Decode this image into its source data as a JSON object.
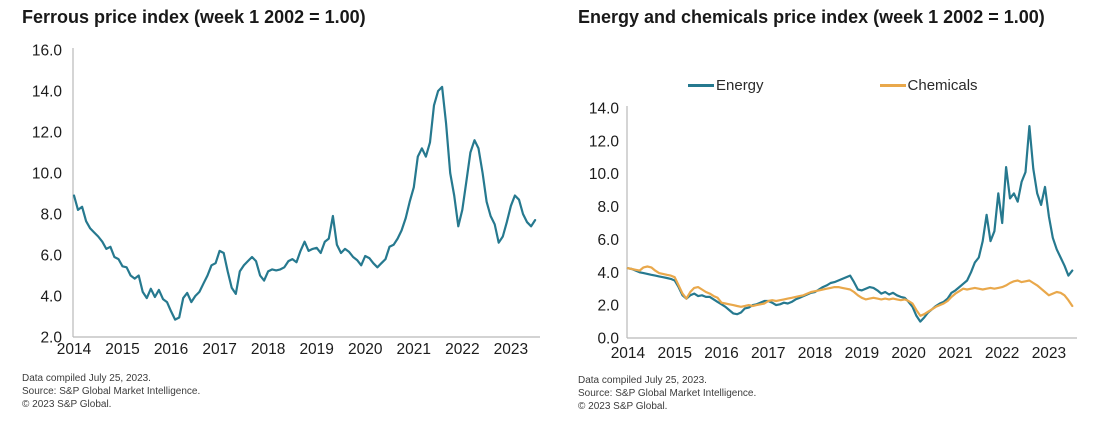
{
  "page": {
    "background": "#ffffff",
    "text_color": "#191919",
    "axis_color": "#b9b9b9"
  },
  "chart_data": [
    {
      "type": "line",
      "title": "Ferrous price index (week 1 2002 = 1.00)",
      "xlabel": "",
      "ylabel": "",
      "x_start_year": 2014,
      "x_frequency": "monthly",
      "x_end_label": "July 2023",
      "xlim": [
        2013.98,
        2023.6
      ],
      "ylim": [
        2.0,
        16.0
      ],
      "yticks": [
        "2.0",
        "4.0",
        "6.0",
        "8.0",
        "10.0",
        "12.0",
        "14.0",
        "16.0"
      ],
      "xticks": [
        "2014",
        "2015",
        "2016",
        "2017",
        "2018",
        "2019",
        "2020",
        "2021",
        "2022",
        "2023"
      ],
      "grid": false,
      "legend_position": "none",
      "series": [
        {
          "name": "Ferrous",
          "color": "#26798f",
          "values": [
            8.9,
            8.2,
            8.35,
            7.65,
            7.3,
            7.1,
            6.9,
            6.65,
            6.3,
            6.4,
            5.9,
            5.8,
            5.45,
            5.4,
            5.0,
            4.85,
            5.0,
            4.2,
            3.9,
            4.35,
            3.95,
            4.3,
            3.85,
            3.7,
            3.25,
            2.85,
            2.95,
            3.9,
            4.15,
            3.7,
            4.0,
            4.2,
            4.6,
            5.0,
            5.5,
            5.6,
            6.2,
            6.1,
            5.2,
            4.4,
            4.1,
            5.2,
            5.5,
            5.7,
            5.9,
            5.7,
            5.0,
            4.75,
            5.2,
            5.3,
            5.25,
            5.3,
            5.4,
            5.7,
            5.8,
            5.65,
            6.2,
            6.65,
            6.2,
            6.3,
            6.35,
            6.1,
            6.65,
            6.8,
            7.9,
            6.5,
            6.1,
            6.3,
            6.15,
            5.9,
            5.75,
            5.5,
            5.95,
            5.85,
            5.6,
            5.4,
            5.6,
            5.8,
            6.4,
            6.5,
            6.8,
            7.2,
            7.8,
            8.6,
            9.3,
            10.8,
            11.2,
            10.8,
            11.5,
            13.3,
            14.0,
            14.2,
            12.4,
            10.0,
            8.9,
            7.4,
            8.2,
            9.6,
            11.0,
            11.6,
            11.2,
            10.0,
            8.6,
            7.9,
            7.5,
            6.6,
            6.9,
            7.6,
            8.4,
            8.9,
            8.7,
            8.0,
            7.6,
            7.4,
            7.7
          ]
        }
      ],
      "footnotes": [
        "Data compiled July 25, 2023.",
        "Source: S&P Global Market Intelligence.",
        "© 2023 S&P Global."
      ]
    },
    {
      "type": "line",
      "title": "Energy and chemicals price index (week 1 2002 = 1.00)",
      "xlabel": "",
      "ylabel": "",
      "x_start_year": 2014,
      "x_frequency": "monthly",
      "x_end_label": "July 2023",
      "xlim": [
        2013.98,
        2023.6
      ],
      "ylim": [
        0.0,
        14.0
      ],
      "yticks": [
        "0.0",
        "2.0",
        "4.0",
        "6.0",
        "8.0",
        "10.0",
        "12.0",
        "14.0"
      ],
      "xticks": [
        "2014",
        "2015",
        "2016",
        "2017",
        "2018",
        "2019",
        "2020",
        "2021",
        "2022",
        "2023"
      ],
      "grid": false,
      "legend_position": "top",
      "series": [
        {
          "name": "Energy",
          "color": "#26798f",
          "values": [
            4.25,
            4.2,
            4.1,
            4.0,
            3.95,
            3.9,
            3.85,
            3.8,
            3.75,
            3.7,
            3.65,
            3.6,
            3.5,
            3.1,
            2.6,
            2.4,
            2.6,
            2.7,
            2.55,
            2.6,
            2.5,
            2.5,
            2.35,
            2.2,
            2.05,
            1.9,
            1.7,
            1.5,
            1.45,
            1.55,
            1.8,
            1.85,
            2.0,
            2.05,
            2.15,
            2.25,
            2.25,
            2.15,
            2.0,
            2.05,
            2.15,
            2.1,
            2.2,
            2.35,
            2.45,
            2.55,
            2.65,
            2.75,
            2.8,
            2.95,
            3.1,
            3.2,
            3.35,
            3.4,
            3.5,
            3.6,
            3.7,
            3.8,
            3.4,
            2.95,
            2.9,
            3.0,
            3.1,
            3.05,
            2.9,
            2.7,
            2.8,
            2.65,
            2.75,
            2.6,
            2.5,
            2.45,
            2.2,
            1.9,
            1.35,
            1.0,
            1.25,
            1.55,
            1.75,
            1.95,
            2.1,
            2.2,
            2.4,
            2.75,
            2.9,
            3.1,
            3.3,
            3.5,
            4.0,
            4.6,
            4.9,
            5.9,
            7.5,
            5.9,
            6.5,
            8.8,
            7.0,
            10.4,
            8.5,
            8.8,
            8.3,
            9.5,
            10.1,
            12.9,
            10.3,
            8.8,
            8.1,
            9.2,
            7.4,
            6.1,
            5.4,
            4.9,
            4.4,
            3.8,
            4.1
          ]
        },
        {
          "name": "Chemicals",
          "color": "#e9a84b",
          "values": [
            4.25,
            4.2,
            4.15,
            4.1,
            4.3,
            4.35,
            4.3,
            4.1,
            3.95,
            3.9,
            3.85,
            3.8,
            3.7,
            3.2,
            2.7,
            2.4,
            2.8,
            3.05,
            3.1,
            2.95,
            2.8,
            2.7,
            2.55,
            2.45,
            2.15,
            2.1,
            2.05,
            2.0,
            1.95,
            1.9,
            1.95,
            2.0,
            1.95,
            2.0,
            2.05,
            2.1,
            2.25,
            2.3,
            2.25,
            2.3,
            2.35,
            2.4,
            2.45,
            2.5,
            2.55,
            2.6,
            2.7,
            2.8,
            2.85,
            2.9,
            2.95,
            3.0,
            3.05,
            3.1,
            3.1,
            3.05,
            3.0,
            2.95,
            2.8,
            2.6,
            2.45,
            2.35,
            2.4,
            2.45,
            2.4,
            2.35,
            2.4,
            2.35,
            2.4,
            2.35,
            2.3,
            2.35,
            2.25,
            2.1,
            1.7,
            1.35,
            1.45,
            1.6,
            1.75,
            1.9,
            2.0,
            2.1,
            2.25,
            2.5,
            2.7,
            2.85,
            3.0,
            2.95,
            3.0,
            3.05,
            3.0,
            2.95,
            3.0,
            3.05,
            3.0,
            3.05,
            3.1,
            3.2,
            3.35,
            3.45,
            3.5,
            3.4,
            3.45,
            3.5,
            3.35,
            3.2,
            3.0,
            2.8,
            2.6,
            2.7,
            2.8,
            2.75,
            2.6,
            2.3,
            1.95
          ]
        }
      ],
      "footnotes": [
        "Data compiled July 25, 2023.",
        "Source: S&P Global Market Intelligence.",
        "© 2023 S&P Global."
      ]
    }
  ]
}
